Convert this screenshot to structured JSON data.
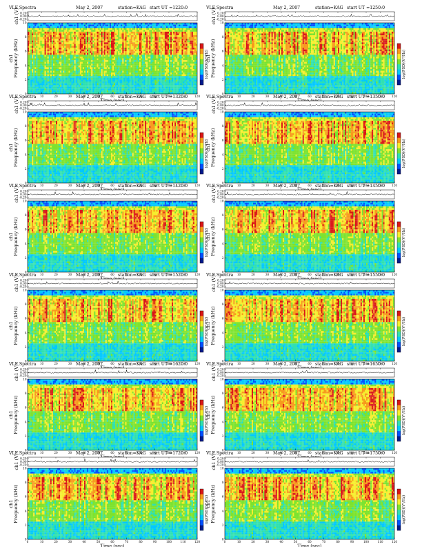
{
  "chart_data": [
    {
      "type": "heatmap",
      "title_left": "VLF Spectra",
      "date": "May 2, 2007",
      "station": "station=KAG",
      "start": "start  UT  =1220:0",
      "top_ylabel": "ch1 (V)",
      "top_yticks": [
        "0.20",
        "0.00",
        "-0.20"
      ],
      "ylabel_line1": "ch1",
      "ylabel_line2": "Frequency  (kHz)",
      "yticks": [
        "0",
        "2",
        "4",
        "6",
        "8",
        "10"
      ],
      "ylim": [
        0,
        10
      ],
      "xlabel": "Time (sec)",
      "xticks": [
        "0",
        "10",
        "20",
        "30",
        "40",
        "50",
        "60",
        "70",
        "80",
        "90",
        "100",
        "110",
        "120"
      ],
      "xlim": [
        0,
        120
      ],
      "colorbar_label": "log(PSD)(V²/Hz)",
      "colorscale": [
        "#001a8c",
        "#0050ff",
        "#00c8ff",
        "#2ee0b0",
        "#7ce32e",
        "#f6ee2b",
        "#f79a1c",
        "#d91616"
      ]
    },
    {
      "type": "heatmap",
      "title_left": "VLF Spectra",
      "date": "May 2, 2007",
      "station": "station=KAG",
      "start": "start  UT  =1250:0",
      "top_ylabel": "ch1 (V)",
      "top_yticks": [
        "0.20",
        "0.00",
        "-0.20"
      ],
      "ylabel_line1": "ch1",
      "ylabel_line2": "Frequency  (kHz)",
      "yticks": [
        "0",
        "2",
        "4",
        "6",
        "8",
        "10"
      ],
      "ylim": [
        0,
        10
      ],
      "xlabel": "Time (sec)",
      "xticks": [
        "0",
        "10",
        "20",
        "30",
        "40",
        "50",
        "60",
        "70",
        "80",
        "90",
        "100",
        "110",
        "120"
      ],
      "xlim": [
        0,
        120
      ],
      "colorbar_label": "log(PSD)(V²/Hz)",
      "colorscale": [
        "#001a8c",
        "#0050ff",
        "#00c8ff",
        "#2ee0b0",
        "#7ce32e",
        "#f6ee2b",
        "#f79a1c",
        "#d91616"
      ]
    },
    {
      "type": "heatmap",
      "title_left": "VLF Spectra",
      "date": "May 2, 2007",
      "station": "station=KAG",
      "start": "start  UT  =1320:0",
      "top_ylabel": "ch1 (V)",
      "top_yticks": [
        "0.20",
        "0.00",
        "-0.20"
      ],
      "ylabel_line1": "ch1",
      "ylabel_line2": "Frequency  (kHz)",
      "yticks": [
        "0",
        "2",
        "4",
        "6",
        "8",
        "10"
      ],
      "ylim": [
        0,
        10
      ],
      "xlabel": "Time (sec)",
      "xticks": [
        "0",
        "10",
        "20",
        "30",
        "40",
        "50",
        "60",
        "70",
        "80",
        "90",
        "100",
        "110",
        "120"
      ],
      "xlim": [
        0,
        120
      ],
      "colorbar_label": "log(PSD)(V²/Hz)",
      "colorscale": [
        "#001a8c",
        "#0050ff",
        "#00c8ff",
        "#2ee0b0",
        "#7ce32e",
        "#f6ee2b",
        "#f79a1c",
        "#d91616"
      ]
    },
    {
      "type": "heatmap",
      "title_left": "VLF Spectra",
      "date": "May 2, 2007",
      "station": "station=KAG",
      "start": "start  UT  =1350:0",
      "top_ylabel": "ch1 (V)",
      "top_yticks": [
        "0.20",
        "0.00",
        "-0.20"
      ],
      "ylabel_line1": "ch1",
      "ylabel_line2": "Frequency  (kHz)",
      "yticks": [
        "0",
        "2",
        "4",
        "6",
        "8",
        "10"
      ],
      "ylim": [
        0,
        10
      ],
      "xlabel": "Time (sec)",
      "xticks": [
        "0",
        "10",
        "20",
        "30",
        "40",
        "50",
        "60",
        "70",
        "80",
        "90",
        "100",
        "110",
        "120"
      ],
      "xlim": [
        0,
        120
      ],
      "colorbar_label": "log(PSD)(V²/Hz)",
      "colorscale": [
        "#001a8c",
        "#0050ff",
        "#00c8ff",
        "#2ee0b0",
        "#7ce32e",
        "#f6ee2b",
        "#f79a1c",
        "#d91616"
      ]
    },
    {
      "type": "heatmap",
      "title_left": "VLF Spectra",
      "date": "May 2, 2007",
      "station": "station=KAG",
      "start": "start  UT  =1420:0",
      "top_ylabel": "ch1 (V)",
      "top_yticks": [
        "0.20",
        "0.00",
        "-0.20"
      ],
      "ylabel_line1": "ch1",
      "ylabel_line2": "Frequency  (kHz)",
      "yticks": [
        "0",
        "2",
        "4",
        "6",
        "8",
        "10"
      ],
      "ylim": [
        0,
        10
      ],
      "xlabel": "Time (sec)",
      "xticks": [
        "0",
        "10",
        "20",
        "30",
        "40",
        "50",
        "60",
        "70",
        "80",
        "90",
        "100",
        "110",
        "120"
      ],
      "xlim": [
        0,
        120
      ],
      "colorbar_label": "log(PSD)(V²/Hz)",
      "colorscale": [
        "#001a8c",
        "#0050ff",
        "#00c8ff",
        "#2ee0b0",
        "#7ce32e",
        "#f6ee2b",
        "#f79a1c",
        "#d91616"
      ]
    },
    {
      "type": "heatmap",
      "title_left": "VLF Spectra",
      "date": "May 2, 2007",
      "station": "station=KAG",
      "start": "start  UT  =1450:0",
      "top_ylabel": "ch1 (V)",
      "top_yticks": [
        "0.20",
        "0.00",
        "-0.20"
      ],
      "ylabel_line1": "ch1",
      "ylabel_line2": "Frequency  (kHz)",
      "yticks": [
        "0",
        "2",
        "4",
        "6",
        "8",
        "10"
      ],
      "ylim": [
        0,
        10
      ],
      "xlabel": "Time (sec)",
      "xticks": [
        "0",
        "10",
        "20",
        "30",
        "40",
        "50",
        "60",
        "70",
        "80",
        "90",
        "100",
        "110",
        "120"
      ],
      "xlim": [
        0,
        120
      ],
      "colorbar_label": "log(PSD)(V²/Hz)",
      "colorscale": [
        "#001a8c",
        "#0050ff",
        "#00c8ff",
        "#2ee0b0",
        "#7ce32e",
        "#f6ee2b",
        "#f79a1c",
        "#d91616"
      ]
    },
    {
      "type": "heatmap",
      "title_left": "VLF Spectra",
      "date": "May 2, 2007",
      "station": "station=KAG",
      "start": "start  UT  =1520:0",
      "top_ylabel": "ch1 (V)",
      "top_yticks": [
        "0.20",
        "0.00",
        "-0.20"
      ],
      "ylabel_line1": "ch1",
      "ylabel_line2": "Frequency  (kHz)",
      "yticks": [
        "0",
        "2",
        "4",
        "6",
        "8",
        "10"
      ],
      "ylim": [
        0,
        10
      ],
      "xlabel": "Time (sec)",
      "xticks": [
        "0",
        "10",
        "20",
        "30",
        "40",
        "50",
        "60",
        "70",
        "80",
        "90",
        "100",
        "110",
        "120"
      ],
      "xlim": [
        0,
        120
      ],
      "colorbar_label": "log(PSD)(V²/Hz)",
      "colorscale": [
        "#001a8c",
        "#0050ff",
        "#00c8ff",
        "#2ee0b0",
        "#7ce32e",
        "#f6ee2b",
        "#f79a1c",
        "#d91616"
      ]
    },
    {
      "type": "heatmap",
      "title_left": "VLF Spectra",
      "date": "May 2, 2007",
      "station": "station=KAG",
      "start": "start  UT  =1550:0",
      "top_ylabel": "ch1 (V)",
      "top_yticks": [
        "0.20",
        "0.00",
        "-0.20"
      ],
      "ylabel_line1": "ch1",
      "ylabel_line2": "Frequency  (kHz)",
      "yticks": [
        "0",
        "2",
        "4",
        "6",
        "8",
        "10"
      ],
      "ylim": [
        0,
        10
      ],
      "xlabel": "Time (sec)",
      "xticks": [
        "0",
        "10",
        "20",
        "30",
        "40",
        "50",
        "60",
        "70",
        "80",
        "90",
        "100",
        "110",
        "120"
      ],
      "xlim": [
        0,
        120
      ],
      "colorbar_label": "log(PSD)(V²/Hz)",
      "colorscale": [
        "#001a8c",
        "#0050ff",
        "#00c8ff",
        "#2ee0b0",
        "#7ce32e",
        "#f6ee2b",
        "#f79a1c",
        "#d91616"
      ]
    },
    {
      "type": "heatmap",
      "title_left": "VLF Spectra",
      "date": "May 2, 2007",
      "station": "station=KAG",
      "start": "start  UT  =1620:0",
      "top_ylabel": "ch1 (V)",
      "top_yticks": [
        "0.20",
        "0.00",
        "-0.20"
      ],
      "ylabel_line1": "ch1",
      "ylabel_line2": "Frequency  (kHz)",
      "yticks": [
        "0",
        "2",
        "4",
        "6",
        "8",
        "10"
      ],
      "ylim": [
        0,
        10
      ],
      "xlabel": "Time (sec)",
      "xticks": [
        "0",
        "10",
        "20",
        "30",
        "40",
        "50",
        "60",
        "70",
        "80",
        "90",
        "100",
        "110",
        "120"
      ],
      "xlim": [
        0,
        120
      ],
      "colorbar_label": "log(PSD)(V²/Hz)",
      "colorscale": [
        "#001a8c",
        "#0050ff",
        "#00c8ff",
        "#2ee0b0",
        "#7ce32e",
        "#f6ee2b",
        "#f79a1c",
        "#d91616"
      ]
    },
    {
      "type": "heatmap",
      "title_left": "VLF Spectra",
      "date": "May 2, 2007",
      "station": "station=KAG",
      "start": "start  UT  =1650:0",
      "top_ylabel": "ch1 (V)",
      "top_yticks": [
        "0.20",
        "0.00",
        "-0.20"
      ],
      "ylabel_line1": "ch1",
      "ylabel_line2": "Frequency  (kHz)",
      "yticks": [
        "0",
        "2",
        "4",
        "6",
        "8",
        "10"
      ],
      "ylim": [
        0,
        10
      ],
      "xlabel": "Time (sec)",
      "xticks": [
        "0",
        "10",
        "20",
        "30",
        "40",
        "50",
        "60",
        "70",
        "80",
        "90",
        "100",
        "110",
        "120"
      ],
      "xlim": [
        0,
        120
      ],
      "colorbar_label": "log(PSD)(V²/Hz)",
      "colorscale": [
        "#001a8c",
        "#0050ff",
        "#00c8ff",
        "#2ee0b0",
        "#7ce32e",
        "#f6ee2b",
        "#f79a1c",
        "#d91616"
      ]
    },
    {
      "type": "heatmap",
      "title_left": "VLF Spectra",
      "date": "May 2, 2007",
      "station": "station=KAG",
      "start": "start  UT  =1720:0",
      "top_ylabel": "ch1 (V)",
      "top_yticks": [
        "0.20",
        "0.00",
        "-0.20"
      ],
      "ylabel_line1": "ch1",
      "ylabel_line2": "Frequency  (kHz)",
      "yticks": [
        "0",
        "2",
        "4",
        "6",
        "8",
        "10"
      ],
      "ylim": [
        0,
        10
      ],
      "xlabel": "Time (sec)",
      "xticks": [
        "0",
        "10",
        "20",
        "30",
        "40",
        "50",
        "60",
        "70",
        "80",
        "90",
        "100",
        "110",
        "120"
      ],
      "xlim": [
        0,
        120
      ],
      "colorbar_label": "log(PSD)(V²/Hz)",
      "colorscale": [
        "#001a8c",
        "#0050ff",
        "#00c8ff",
        "#2ee0b0",
        "#7ce32e",
        "#f6ee2b",
        "#f79a1c",
        "#d91616"
      ]
    },
    {
      "type": "heatmap",
      "title_left": "VLF Spectra",
      "date": "May 2, 2007",
      "station": "station=KAG",
      "start": "start  UT  =1750:0",
      "top_ylabel": "ch1 (V)",
      "top_yticks": [
        "0.20",
        "0.00",
        "-0.20"
      ],
      "ylabel_line1": "ch1",
      "ylabel_line2": "Frequency  (kHz)",
      "yticks": [
        "0",
        "2",
        "4",
        "6",
        "8",
        "10"
      ],
      "ylim": [
        0,
        10
      ],
      "xlabel": "Time (sec)",
      "xticks": [
        "0",
        "10",
        "20",
        "30",
        "40",
        "50",
        "60",
        "70",
        "80",
        "90",
        "100",
        "110",
        "120"
      ],
      "xlim": [
        0,
        120
      ],
      "colorbar_label": "log(PSD)(V²/Hz)",
      "colorscale": [
        "#001a8c",
        "#0050ff",
        "#00c8ff",
        "#2ee0b0",
        "#7ce32e",
        "#f6ee2b",
        "#f79a1c",
        "#d91616"
      ]
    }
  ]
}
